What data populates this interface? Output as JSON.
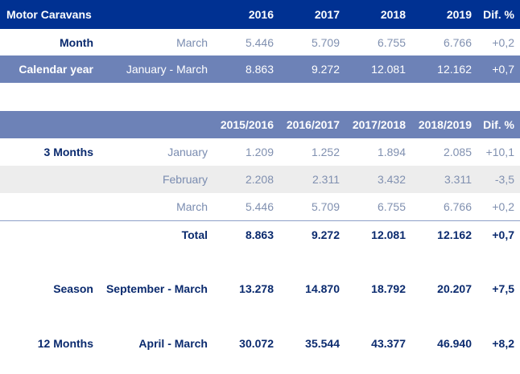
{
  "header": {
    "title": "Motor Caravans",
    "years": [
      "2016",
      "2017",
      "2018",
      "2019"
    ],
    "dif": "Dif. %"
  },
  "month_row": {
    "label": "Month",
    "period": "March",
    "values": [
      "5.446",
      "5.709",
      "6.755",
      "6.766"
    ],
    "dif": "+0,2"
  },
  "calendar_row": {
    "label": "Calendar year",
    "period": "January - March",
    "values": [
      "8.863",
      "9.272",
      "12.081",
      "12.162"
    ],
    "dif": "+0,7"
  },
  "header2": {
    "seasons": [
      "2015/2016",
      "2016/2017",
      "2017/2018",
      "2018/2019"
    ],
    "dif": "Dif. %"
  },
  "three_months": {
    "label": "3 Months",
    "rows": [
      {
        "period": "January",
        "values": [
          "1.209",
          "1.252",
          "1.894",
          "2.085"
        ],
        "dif": "+10,1"
      },
      {
        "period": "February",
        "values": [
          "2.208",
          "2.311",
          "3.432",
          "3.311"
        ],
        "dif": "-3,5"
      },
      {
        "period": "March",
        "values": [
          "5.446",
          "5.709",
          "6.755",
          "6.766"
        ],
        "dif": "+0,2"
      }
    ],
    "total": {
      "label": "Total",
      "values": [
        "8.863",
        "9.272",
        "12.081",
        "12.162"
      ],
      "dif": "+0,7"
    }
  },
  "season_row": {
    "label": "Season",
    "period": "September - March",
    "values": [
      "13.278",
      "14.870",
      "18.792",
      "20.207"
    ],
    "dif": "+7,5"
  },
  "twelve_row": {
    "label": "12 Months",
    "period": "April - March",
    "values": [
      "30.072",
      "35.544",
      "43.377",
      "46.940"
    ],
    "dif": "+8,2"
  },
  "colors": {
    "header_dark": "#003192",
    "header_light": "#6d82b7",
    "label_text": "#0a2a6e",
    "muted_text": "#8090b0"
  }
}
